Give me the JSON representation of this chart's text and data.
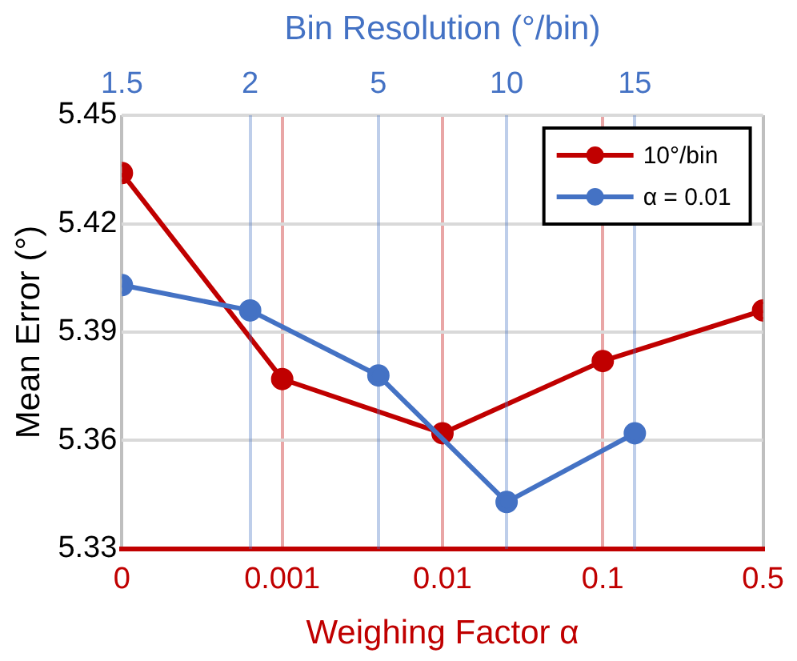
{
  "chart_data": [
    {
      "type": "line",
      "xlabel": "Weighing Factor α",
      "ylabel": "Mean Error (°)",
      "categories": [
        "0",
        "0.001",
        "0.01",
        "0.1",
        "0.5"
      ],
      "series": [
        {
          "name": "10°/bin",
          "color": "#c00000",
          "values": [
            5.434,
            5.377,
            5.362,
            5.382,
            5.396
          ]
        }
      ],
      "ylim": [
        5.33,
        5.45
      ],
      "yticks": [
        5.33,
        5.36,
        5.39,
        5.42,
        5.45
      ],
      "grid": true,
      "legend": "top right",
      "marker": "circle",
      "line_style": "solid"
    },
    {
      "type": "line",
      "xlabel": "Bin Resolution (°/bin)",
      "categories": [
        "1.5",
        "2",
        "5",
        "10",
        "15",
        null
      ],
      "series": [
        {
          "name": "α = 0.01",
          "color": "#4472c4",
          "values": [
            5.403,
            5.396,
            5.378,
            5.343,
            5.362,
            null
          ]
        }
      ],
      "ylim": [
        5.33,
        5.45
      ],
      "tick_labels": "x",
      "grid": "x",
      "legend": "top right",
      "marker": "circle",
      "line_style": "solid"
    }
  ]
}
